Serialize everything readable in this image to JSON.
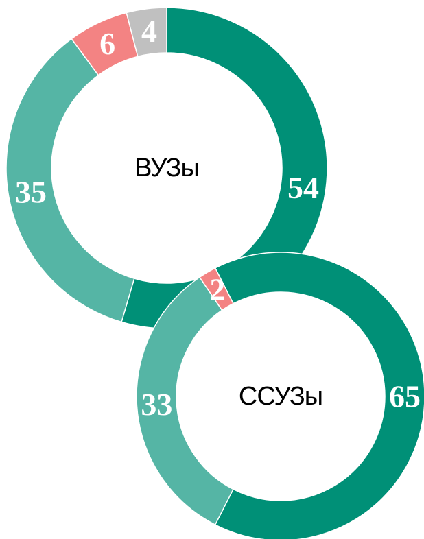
{
  "chart_data": [
    {
      "type": "pie",
      "title": "ВУЗы",
      "values": [
        54,
        35,
        6,
        4
      ],
      "colors": [
        "#009077",
        "#55b5a5",
        "#f38383",
        "#c0c0c0"
      ]
    },
    {
      "type": "pie",
      "title": "ССУЗы",
      "values": [
        65,
        33,
        2
      ],
      "colors": [
        "#009077",
        "#55b5a5",
        "#f38383"
      ]
    }
  ]
}
